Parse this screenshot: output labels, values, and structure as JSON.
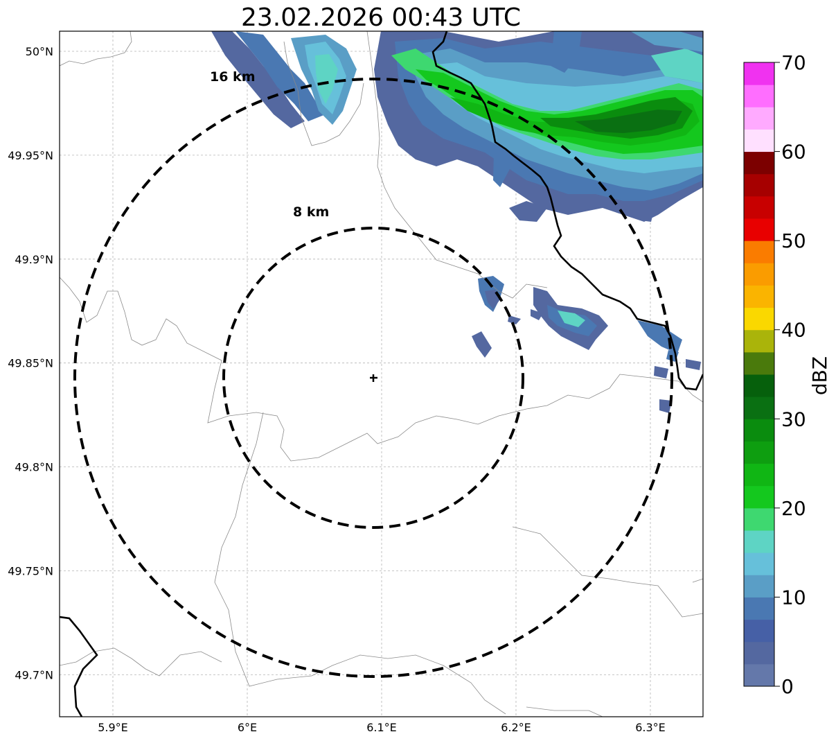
{
  "title": "23.02.2026 00:43 UTC",
  "map": {
    "lon_ticks": [
      {
        "value": 5.9,
        "label": "5.9°E"
      },
      {
        "value": 6.0,
        "label": "6°E"
      },
      {
        "value": 6.1,
        "label": "6.1°E"
      },
      {
        "value": 6.2,
        "label": "6.2°E"
      },
      {
        "value": 6.3,
        "label": "6.3°E"
      }
    ],
    "lat_ticks": [
      {
        "value": 50.0,
        "label": "50°N"
      },
      {
        "value": 49.95,
        "label": "49.95°N"
      },
      {
        "value": 49.9,
        "label": "49.9°N"
      },
      {
        "value": 49.85,
        "label": "49.85°N"
      },
      {
        "value": 49.8,
        "label": "49.8°N"
      },
      {
        "value": 49.75,
        "label": "49.75°N"
      },
      {
        "value": 49.7,
        "label": "49.7°N"
      }
    ],
    "lon_range": [
      5.86,
      6.34
    ],
    "lat_range": [
      49.68,
      50.01
    ],
    "center": {
      "lon": 6.094,
      "lat": 49.843
    },
    "rings": [
      {
        "radius_km": 8,
        "label": "8 km"
      },
      {
        "radius_km": 16,
        "label": "16 km"
      }
    ],
    "grid": true
  },
  "colorbar": {
    "label": "dBZ",
    "ticks": [
      "0",
      "10",
      "20",
      "30",
      "40",
      "50",
      "60",
      "70"
    ],
    "colors": [
      "#6478aa",
      "#5468a0",
      "#4660a6",
      "#4a78b2",
      "#5a9ec6",
      "#66c0da",
      "#5ed4c4",
      "#3ed870",
      "#14c81e",
      "#10b614",
      "#0e9e10",
      "#0a8c0e",
      "#0a7012",
      "#06600c",
      "#4a7a0c",
      "#aab40a",
      "#fad800",
      "#fab400",
      "#fa9c00",
      "#fa7c00",
      "#e80000",
      "#c80000",
      "#a60000",
      "#7c0000",
      "#ffe0ff",
      "#ffaaff",
      "#ff6eff",
      "#f032f0"
    ]
  }
}
